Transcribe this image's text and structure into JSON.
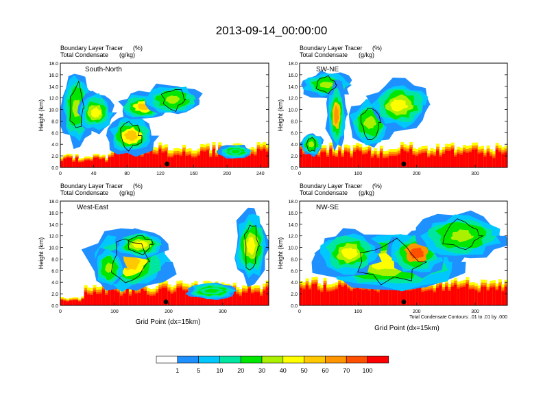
{
  "title": "2013-09-14_00:00:00",
  "subtitle_left": [
    "Boundary Layer Tracer",
    "Total Condensate"
  ],
  "subtitle_right": [
    "(%)",
    "(g/kg)"
  ],
  "chart_data": [
    {
      "type": "heatmap",
      "label": "South-North",
      "xlabel": "",
      "ylabel": "Height (km)",
      "xlim": [
        0,
        250
      ],
      "ylim": [
        0,
        18
      ],
      "xticks": [
        "0",
        "40",
        "80",
        "120",
        "160",
        "200",
        "240"
      ],
      "yticks": [
        "0.0",
        "2.0",
        "4.0",
        "6.0",
        "8.0",
        "10.0",
        "12.0",
        "14.0",
        "16.0",
        "18.0"
      ],
      "cloud_regions": [
        {
          "x": [
            0,
            40
          ],
          "z": [
            4,
            16.5
          ],
          "level": 20
        },
        {
          "x": [
            20,
            65
          ],
          "z": [
            6,
            13
          ],
          "level": 30
        },
        {
          "x": [
            55,
            115
          ],
          "z": [
            2,
            9
          ],
          "level": 40
        },
        {
          "x": [
            70,
            130
          ],
          "z": [
            8,
            13
          ],
          "level": 40
        },
        {
          "x": [
            100,
            170
          ],
          "z": [
            9,
            14.5
          ],
          "level": 20
        },
        {
          "x": [
            190,
            230
          ],
          "z": [
            1.5,
            4
          ],
          "level": 10
        }
      ],
      "marker_x": 128
    },
    {
      "type": "heatmap",
      "label": "SW-NE",
      "xlabel": "",
      "ylabel": "Height (km)",
      "xlim": [
        0,
        355
      ],
      "ylim": [
        0,
        18
      ],
      "xticks": [
        "0",
        "100",
        "200",
        "300"
      ],
      "yticks": [
        "0.0",
        "2.0",
        "4.0",
        "6.0",
        "8.0",
        "10.0",
        "12.0",
        "14.0",
        "16.0",
        "18.0"
      ],
      "cloud_regions": [
        {
          "x": [
            0,
            90
          ],
          "z": [
            12,
            16.5
          ],
          "level": 20
        },
        {
          "x": [
            45,
            80
          ],
          "z": [
            3,
            15
          ],
          "level": 50
        },
        {
          "x": [
            80,
            160
          ],
          "z": [
            3.5,
            12
          ],
          "level": 20
        },
        {
          "x": [
            115,
            225
          ],
          "z": [
            6.5,
            15
          ],
          "level": 30
        },
        {
          "x": [
            0,
            40
          ],
          "z": [
            2,
            6
          ],
          "level": 20
        }
      ],
      "marker_x": 178
    },
    {
      "type": "heatmap",
      "label": "West-East",
      "xlabel": "Grid Point (dx=15km)",
      "ylabel": "Height (km)",
      "xlim": [
        0,
        385
      ],
      "ylim": [
        0,
        18
      ],
      "xticks": [
        "0",
        "100",
        "200",
        "300"
      ],
      "yticks": [
        "0.0",
        "2.0",
        "4.0",
        "6.0",
        "8.0",
        "10.0",
        "12.0",
        "14.0",
        "16.0",
        "18.0"
      ],
      "cloud_regions": [
        {
          "x": [
            45,
            210
          ],
          "z": [
            2,
            13
          ],
          "level": 40
        },
        {
          "x": [
            60,
            120
          ],
          "z": [
            3,
            10
          ],
          "level": 20
        },
        {
          "x": [
            95,
            200
          ],
          "z": [
            8,
            13
          ],
          "level": 30
        },
        {
          "x": [
            230,
            330
          ],
          "z": [
            1,
            4
          ],
          "level": 10
        },
        {
          "x": [
            320,
            385
          ],
          "z": [
            4,
            16.5
          ],
          "level": 30
        }
      ],
      "marker_x": 195
    },
    {
      "type": "heatmap",
      "label": "NW-SE",
      "xlabel": "Grid Point (dx=15km)",
      "ylabel": "Height (km)",
      "xlim": [
        0,
        355
      ],
      "ylim": [
        0,
        18
      ],
      "xticks": [
        "0",
        "100",
        "200",
        "300"
      ],
      "yticks": [
        "0.0",
        "2.0",
        "4.0",
        "6.0",
        "8.0",
        "10.0",
        "12.0",
        "14.0",
        "16.0",
        "18.0"
      ],
      "cloud_regions": [
        {
          "x": [
            15,
            290
          ],
          "z": [
            2,
            13
          ],
          "level": 30
        },
        {
          "x": [
            150,
            250
          ],
          "z": [
            5,
            13
          ],
          "level": 60
        },
        {
          "x": [
            200,
            355
          ],
          "z": [
            8,
            16
          ],
          "level": 20
        },
        {
          "x": [
            30,
            140
          ],
          "z": [
            5,
            13
          ],
          "level": 30
        }
      ],
      "marker_x": 178,
      "note": "Total Condensate Contours: .01 to .01 by .000"
    }
  ],
  "colorbar": {
    "labels": [
      "1",
      "5",
      "10",
      "20",
      "30",
      "40",
      "50",
      "60",
      "70",
      "100"
    ],
    "colors": [
      "#ffffff",
      "#1e90ff",
      "#00c8ff",
      "#00e6a0",
      "#00e600",
      "#aaf000",
      "#ffff00",
      "#ffc800",
      "#ff9600",
      "#ff5000",
      "#ff0000"
    ]
  }
}
